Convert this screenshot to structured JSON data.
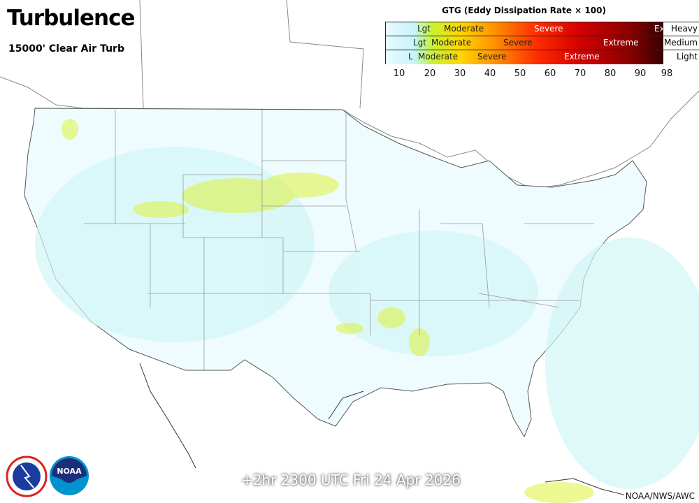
{
  "header": {
    "title": "Turbulence",
    "subtitle": "15000' Clear Air Turb"
  },
  "legend": {
    "title": "GTG (Eddy Dissipation Rate × 100)",
    "rows": [
      {
        "name": "Heavy",
        "labels": [
          "Lgt",
          "Moderate",
          "Severe",
          "Ex"
        ]
      },
      {
        "name": "Medium",
        "labels": [
          "Lgt",
          "Moderate",
          "Severe",
          "Extreme"
        ]
      },
      {
        "name": "Light",
        "labels": [
          "L",
          "Moderate",
          "Severe",
          "Extreme"
        ]
      }
    ],
    "ticks": [
      "10",
      "20",
      "30",
      "40",
      "50",
      "60",
      "70",
      "80",
      "90",
      "98"
    ],
    "colors": [
      "#e8fbff",
      "#c8f4fb",
      "#c9f230",
      "#ffd700",
      "#ff8c00",
      "#ff2a00",
      "#d40000",
      "#8b0000",
      "#3a0000"
    ]
  },
  "footer": {
    "valid_time": "+2hr 2300 UTC Fri 24 Apr 2026",
    "credit": "NOAA/NWS/AWC",
    "logos": [
      "NATIONAL WEATHER SERVICE",
      "NOAA"
    ]
  }
}
